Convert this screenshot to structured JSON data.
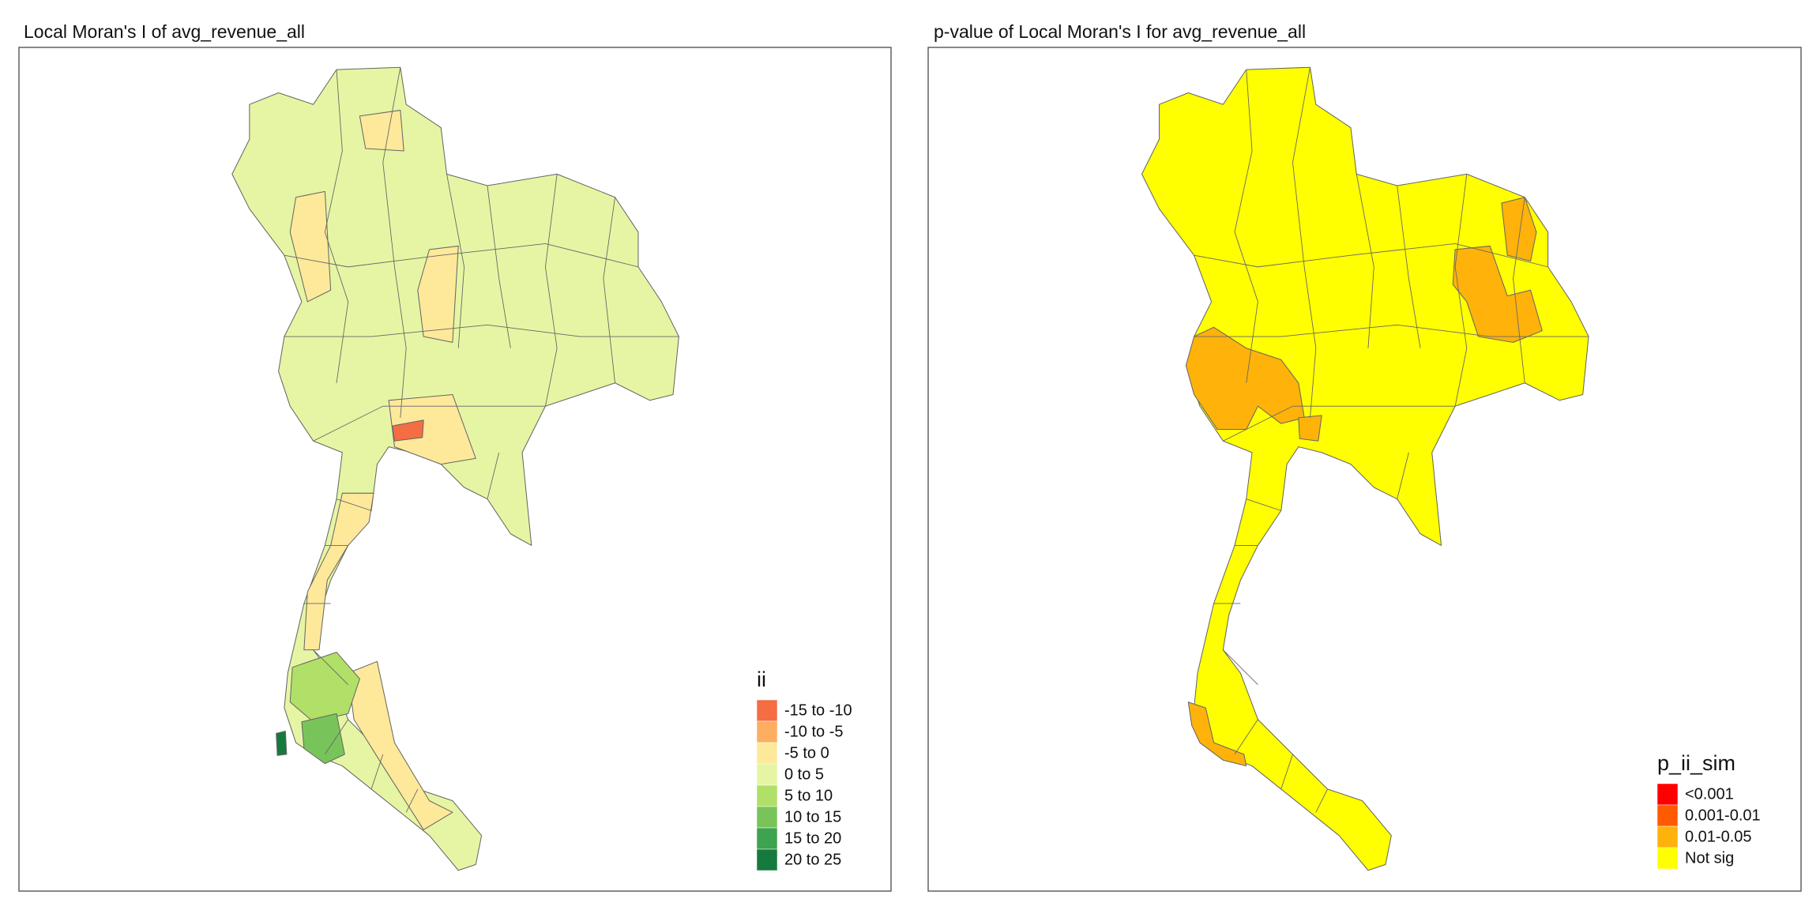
{
  "panels": [
    {
      "title": "Local Moran's I of avg_revenue_all",
      "legend": {
        "title": "ii",
        "items": [
          {
            "label": "-15 to -10",
            "color": "#f46d43"
          },
          {
            "label": "-10 to -5",
            "color": "#fdae61"
          },
          {
            "label": "-5 to 0",
            "color": "#fee99a"
          },
          {
            "label": "0 to 5",
            "color": "#e6f5a3"
          },
          {
            "label": "5 to 10",
            "color": "#b0e068"
          },
          {
            "label": "10 to 15",
            "color": "#79c45a"
          },
          {
            "label": "15 to 20",
            "color": "#3ea34e"
          },
          {
            "label": "20 to 25",
            "color": "#167a3e"
          }
        ]
      }
    },
    {
      "title": "p-value of Local Moran's I for avg_revenue_all",
      "legend": {
        "title": "p_ii_sim",
        "items": [
          {
            "label": "<0.001",
            "color": "#ff0000"
          },
          {
            "label": "0.001-0.01",
            "color": "#ff5a00"
          },
          {
            "label": "0.01-0.05",
            "color": "#ffb20a"
          },
          {
            "label": "Not sig",
            "color": "#ffff00"
          }
        ]
      }
    }
  ]
}
